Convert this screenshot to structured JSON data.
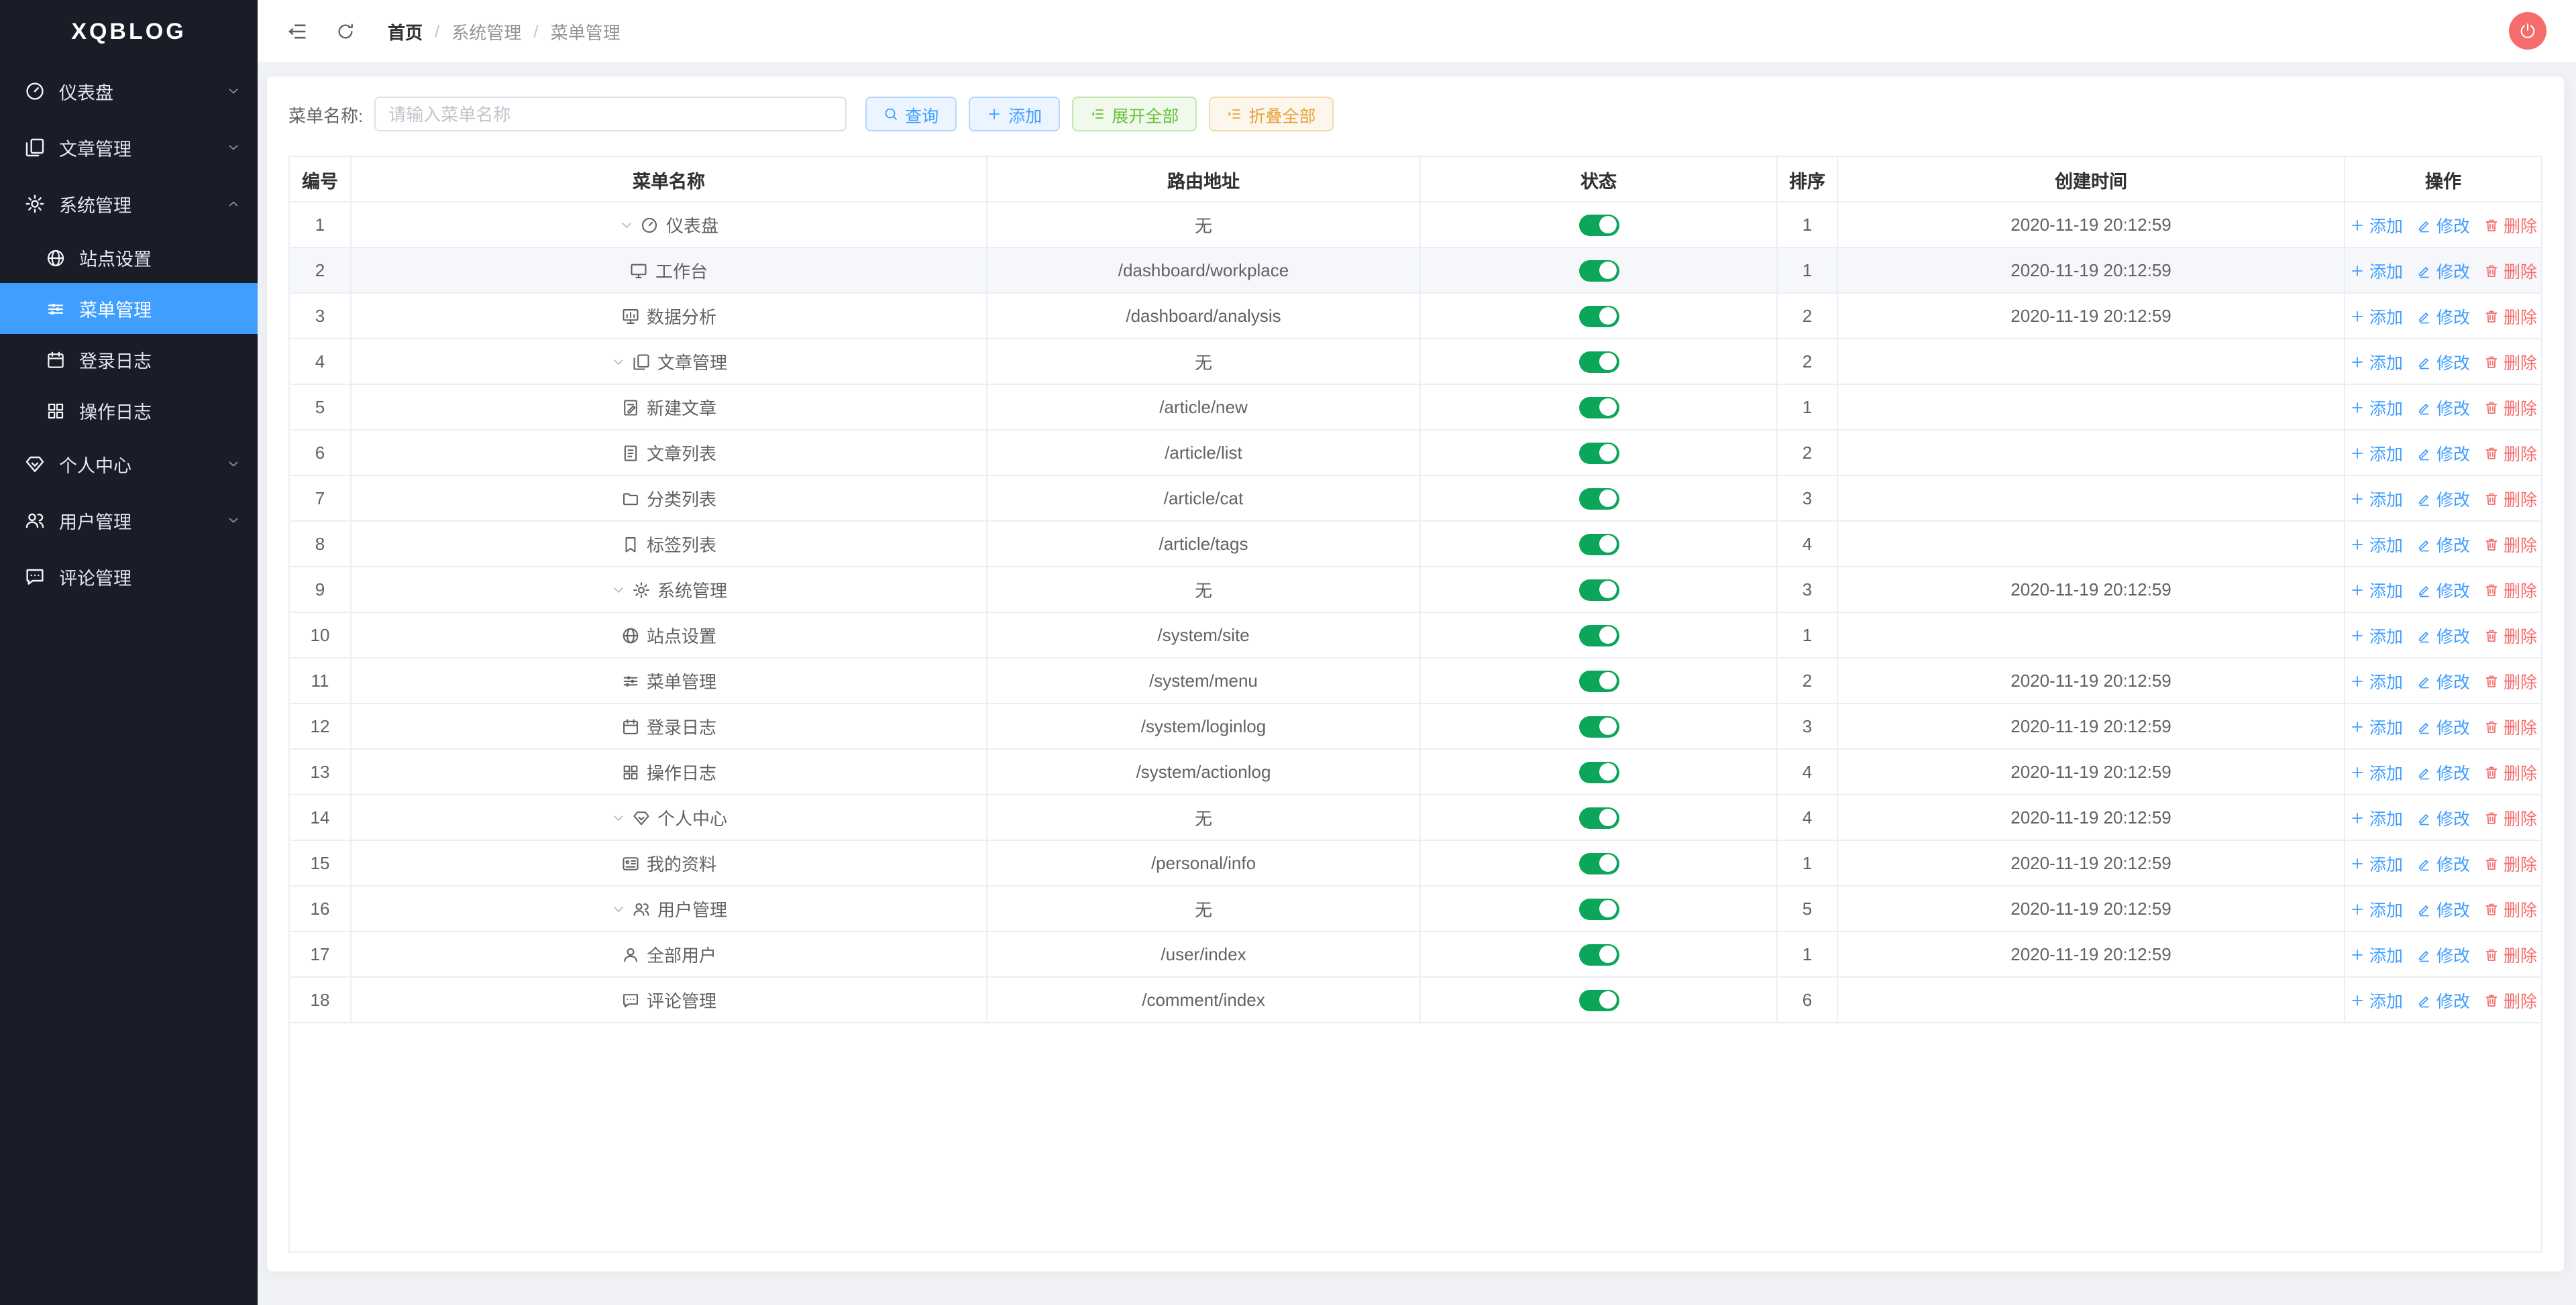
{
  "app": {
    "logo": "XQBLOG"
  },
  "colors": {
    "accent_blue": "#409eff",
    "toggle_on_green": "#0ba65a",
    "danger_red": "#f56c6c",
    "warning_orange": "#e6a23c",
    "success_green": "#67c23a",
    "sidebar_bg": "#191d28",
    "page_bg": "#f0f2f5",
    "avatar_bg": "#f56c6c"
  },
  "sidebar": {
    "items": [
      {
        "key": "dashboard",
        "label": "仪表盘",
        "icon": "odometer-icon",
        "type": "parent",
        "chevron": "down"
      },
      {
        "key": "article",
        "label": "文章管理",
        "icon": "copy-document-icon",
        "type": "parent",
        "chevron": "down"
      },
      {
        "key": "system",
        "label": "系统管理",
        "icon": "gear-icon",
        "type": "parent",
        "chevron": "up"
      },
      {
        "key": "site-settings",
        "label": "站点设置",
        "icon": "globe-icon",
        "type": "sub"
      },
      {
        "key": "menu-management",
        "label": "菜单管理",
        "icon": "sliders-icon",
        "type": "sub",
        "active": true
      },
      {
        "key": "login-log",
        "label": "登录日志",
        "icon": "calendar-icon",
        "type": "sub"
      },
      {
        "key": "action-log",
        "label": "操作日志",
        "icon": "grid-icon",
        "type": "sub"
      },
      {
        "key": "personal",
        "label": "个人中心",
        "icon": "gem-icon",
        "type": "parent",
        "chevron": "down"
      },
      {
        "key": "user",
        "label": "用户管理",
        "icon": "user-group-icon",
        "type": "parent",
        "chevron": "down"
      },
      {
        "key": "comment",
        "label": "评论管理",
        "icon": "chat-icon",
        "type": "parent"
      }
    ]
  },
  "topbar": {
    "breadcrumb": [
      "首页",
      "系统管理",
      "菜单管理"
    ],
    "separator": "/"
  },
  "search": {
    "label": "菜单名称:",
    "placeholder": "请输入菜单名称",
    "value": "",
    "buttons": [
      {
        "label": "查询",
        "icon": "search-icon",
        "style": "blue"
      },
      {
        "label": "添加",
        "icon": "plus-icon",
        "style": "blue"
      },
      {
        "label": "展开全部",
        "icon": "unfold-icon",
        "style": "green"
      },
      {
        "label": "折叠全部",
        "icon": "fold-icon",
        "style": "orange"
      }
    ]
  },
  "table": {
    "columns": [
      "编号",
      "菜单名称",
      "路由地址",
      "状态",
      "排序",
      "创建时间",
      "操作"
    ],
    "actions": {
      "add": "添加",
      "edit": "修改",
      "del": "删除"
    },
    "rows": [
      {
        "id": 1,
        "name": "仪表盘",
        "icon": "odometer-icon",
        "expandable": true,
        "route": "无",
        "status": true,
        "order": 1,
        "created": "2020-11-19 20:12:59"
      },
      {
        "id": 2,
        "name": "工作台",
        "icon": "monitor-icon",
        "route": "/dashboard/workplace",
        "status": true,
        "order": 1,
        "created": "2020-11-19 20:12:59",
        "hovered": true
      },
      {
        "id": 3,
        "name": "数据分析",
        "icon": "chart-icon",
        "route": "/dashboard/analysis",
        "status": true,
        "order": 2,
        "created": "2020-11-19 20:12:59"
      },
      {
        "id": 4,
        "name": "文章管理",
        "icon": "copy-document-icon",
        "expandable": true,
        "route": "无",
        "status": true,
        "order": 2,
        "created": ""
      },
      {
        "id": 5,
        "name": "新建文章",
        "icon": "edit-document-icon",
        "route": "/article/new",
        "status": true,
        "order": 1,
        "created": ""
      },
      {
        "id": 6,
        "name": "文章列表",
        "icon": "document-icon",
        "route": "/article/list",
        "status": true,
        "order": 2,
        "created": ""
      },
      {
        "id": 7,
        "name": "分类列表",
        "icon": "folder-icon",
        "route": "/article/cat",
        "status": true,
        "order": 3,
        "created": ""
      },
      {
        "id": 8,
        "name": "标签列表",
        "icon": "tag-icon",
        "route": "/article/tags",
        "status": true,
        "order": 4,
        "created": ""
      },
      {
        "id": 9,
        "name": "系统管理",
        "icon": "gear-icon",
        "expandable": true,
        "route": "无",
        "status": true,
        "order": 3,
        "created": "2020-11-19 20:12:59"
      },
      {
        "id": 10,
        "name": "站点设置",
        "icon": "globe-icon",
        "route": "/system/site",
        "status": true,
        "order": 1,
        "created": ""
      },
      {
        "id": 11,
        "name": "菜单管理",
        "icon": "sliders-icon",
        "route": "/system/menu",
        "status": true,
        "order": 2,
        "created": "2020-11-19 20:12:59"
      },
      {
        "id": 12,
        "name": "登录日志",
        "icon": "calendar-icon",
        "route": "/system/loginlog",
        "status": true,
        "order": 3,
        "created": "2020-11-19 20:12:59"
      },
      {
        "id": 13,
        "name": "操作日志",
        "icon": "grid-icon",
        "route": "/system/actionlog",
        "status": true,
        "order": 4,
        "created": "2020-11-19 20:12:59"
      },
      {
        "id": 14,
        "name": "个人中心",
        "icon": "gem-icon",
        "expandable": true,
        "route": "无",
        "status": true,
        "order": 4,
        "created": "2020-11-19 20:12:59"
      },
      {
        "id": 15,
        "name": "我的资料",
        "icon": "postcard-icon",
        "route": "/personal/info",
        "status": true,
        "order": 1,
        "created": "2020-11-19 20:12:59"
      },
      {
        "id": 16,
        "name": "用户管理",
        "icon": "user-group-icon",
        "expandable": true,
        "route": "无",
        "status": true,
        "order": 5,
        "created": "2020-11-19 20:12:59"
      },
      {
        "id": 17,
        "name": "全部用户",
        "icon": "user-icon",
        "route": "/user/index",
        "status": true,
        "order": 1,
        "created": "2020-11-19 20:12:59"
      },
      {
        "id": 18,
        "name": "评论管理",
        "icon": "chat-icon",
        "route": "/comment/index",
        "status": true,
        "order": 6,
        "created": ""
      }
    ]
  }
}
